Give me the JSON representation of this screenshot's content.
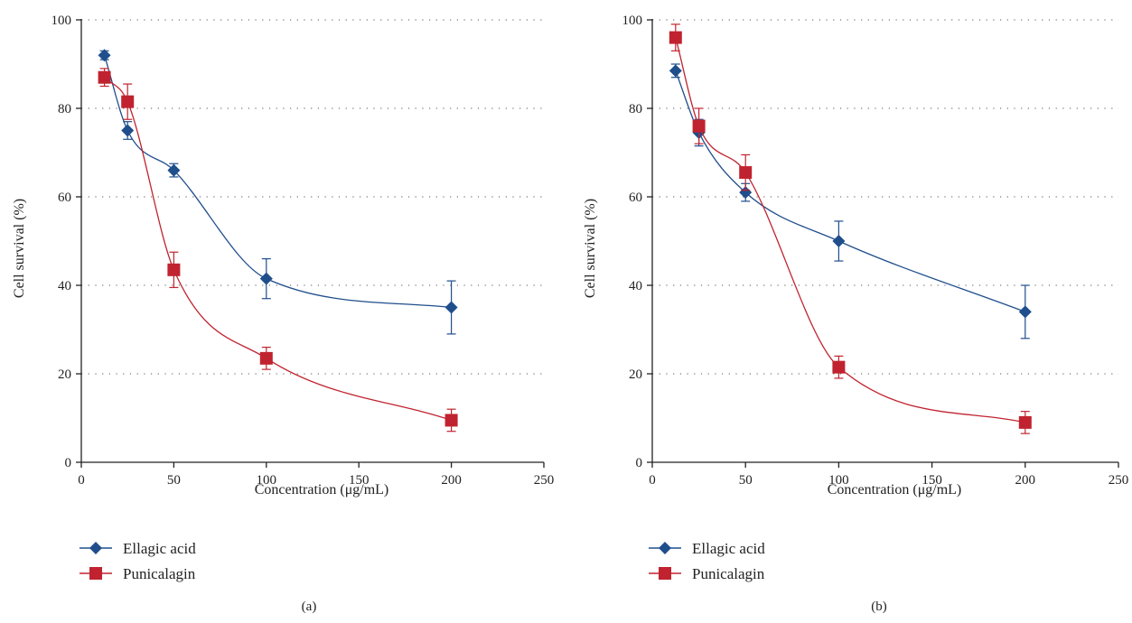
{
  "colors": {
    "ellagic": "#1f4e8c",
    "punicalagin": "#c0232f",
    "axis": "#222222",
    "grid": "#555555"
  },
  "chart_data": [
    {
      "type": "line",
      "panel_label": "(a)",
      "xlabel": "Concentration (μg/mL)",
      "ylabel": "Cell survival (%)",
      "xlim": [
        0,
        250
      ],
      "ylim": [
        0,
        100
      ],
      "x_ticks": [
        0,
        50,
        100,
        150,
        200,
        250
      ],
      "y_ticks": [
        0,
        20,
        40,
        60,
        80,
        100
      ],
      "grid": "horizontal dotted",
      "legend_position": "bottom-left",
      "series": [
        {
          "name": "Ellagic acid",
          "marker": "diamond",
          "color": "#1f4e8c",
          "x": [
            12.5,
            25,
            50,
            100,
            200
          ],
          "y": [
            92,
            75,
            66,
            41.5,
            35
          ],
          "err": [
            1,
            2,
            1.5,
            4.5,
            6
          ]
        },
        {
          "name": "Punicalagin",
          "marker": "square",
          "color": "#c0232f",
          "x": [
            12.5,
            25,
            50,
            100,
            200
          ],
          "y": [
            87,
            81.5,
            43.5,
            23.5,
            9.5
          ],
          "err": [
            2,
            4,
            4,
            2.5,
            2.5
          ]
        }
      ]
    },
    {
      "type": "line",
      "panel_label": "(b)",
      "xlabel": "Concentration (μg/mL)",
      "ylabel": "Cell survival (%)",
      "xlim": [
        0,
        250
      ],
      "ylim": [
        0,
        100
      ],
      "x_ticks": [
        0,
        50,
        100,
        150,
        200,
        250
      ],
      "y_ticks": [
        0,
        20,
        40,
        60,
        80,
        100
      ],
      "grid": "horizontal dotted",
      "legend_position": "bottom-left",
      "series": [
        {
          "name": "Ellagic acid",
          "marker": "diamond",
          "color": "#1f4e8c",
          "x": [
            12.5,
            25,
            50,
            100,
            200
          ],
          "y": [
            88.5,
            74.5,
            61,
            50,
            34
          ],
          "err": [
            1.5,
            3,
            2,
            4.5,
            6
          ]
        },
        {
          "name": "Punicalagin",
          "marker": "square",
          "color": "#c0232f",
          "x": [
            12.5,
            25,
            50,
            100,
            200
          ],
          "y": [
            96,
            76,
            65.5,
            21.5,
            9
          ],
          "err": [
            3,
            4,
            4,
            2.5,
            2.5
          ]
        }
      ]
    }
  ]
}
